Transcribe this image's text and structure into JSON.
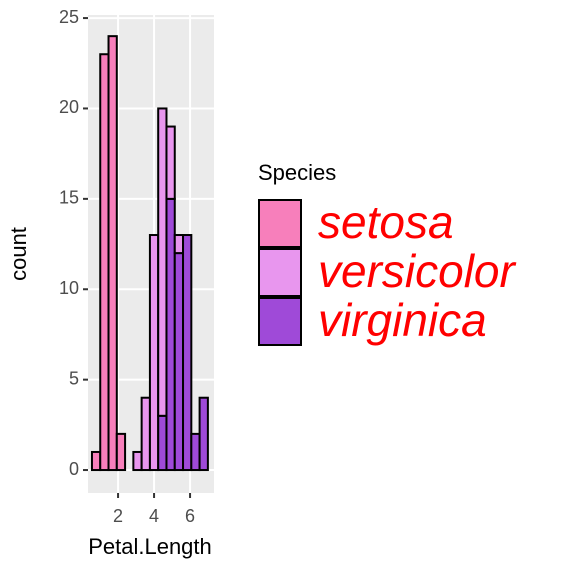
{
  "chart_data": {
    "type": "histogram",
    "stacked": true,
    "x_label": "Petal.Length",
    "y_label": "count",
    "bins": [
      0.55,
      1.01,
      1.47,
      1.93,
      2.39,
      2.85,
      3.31,
      3.77,
      4.23,
      4.69,
      5.15,
      5.61,
      6.07,
      6.53,
      6.99
    ],
    "series": [
      {
        "name": "setosa",
        "color": "#f77fbb",
        "values": [
          1,
          23,
          24,
          2,
          0,
          0,
          0,
          0,
          0,
          0,
          0,
          0,
          0,
          0
        ]
      },
      {
        "name": "versicolor",
        "color": "#e896ee",
        "values": [
          0,
          0,
          0,
          0,
          0,
          1,
          4,
          13,
          17,
          4,
          1,
          0,
          0,
          0
        ]
      },
      {
        "name": "virginica",
        "color": "#9f4ad8",
        "values": [
          0,
          0,
          0,
          0,
          0,
          0,
          0,
          0,
          3,
          15,
          12,
          13,
          2,
          4
        ]
      }
    ],
    "legend_title": "Species",
    "legend_label_color": "#ff0000",
    "xlim": [
      0.33,
      7.33
    ],
    "xticks": [
      2,
      4,
      6
    ],
    "ylim": [
      -1.27,
      25.17
    ],
    "yticks": [
      0,
      5,
      10,
      15,
      20,
      25
    ],
    "grid": true
  }
}
